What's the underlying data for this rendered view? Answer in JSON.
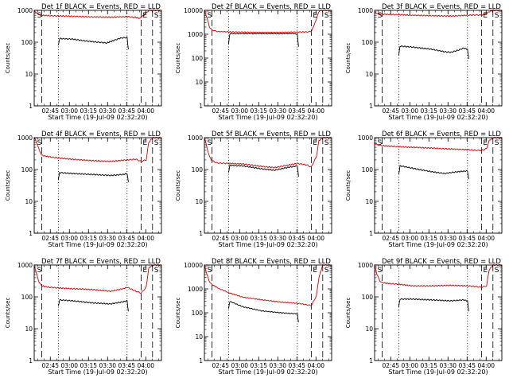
{
  "figure": {
    "series_colors": {
      "events": "#000000",
      "lld": "#e00000"
    }
  },
  "chart_data": [
    {
      "type": "line",
      "title": "Det 1f BLACK = Events, RED = LLD",
      "xlabel": "Start Time (19-Jul-09 02:32:20)",
      "ylabel": "Counts/sec",
      "yscale": "log",
      "ylim": [
        1,
        1000
      ],
      "y_ticks": [
        "1",
        "10",
        "100",
        "1000"
      ],
      "x_ticks": [
        "02:45",
        "03:00",
        "03:15",
        "03:30",
        "03:45",
        "04:00"
      ],
      "x_tick_minutes": [
        12.67,
        27.67,
        42.67,
        57.67,
        72.67,
        87.67
      ],
      "xlim_minutes": [
        0,
        100
      ],
      "markers": [
        {
          "label": "S",
          "minute": 1
        },
        {
          "label": "E",
          "minute": 84
        },
        {
          "label": "S",
          "minute": 93
        }
      ],
      "dashed_lines_minutes": [
        6,
        84,
        93
      ],
      "dotted_lines_minutes": [
        19,
        73
      ],
      "series": [
        {
          "color": "#e00000",
          "x": [
            0,
            2,
            6,
            12,
            19,
            30,
            45,
            60,
            73,
            80,
            83,
            86,
            90,
            92,
            96,
            100
          ],
          "y": [
            1000,
            800,
            700,
            680,
            670,
            650,
            620,
            610,
            630,
            600,
            560,
            700,
            980,
            1000,
            1000,
            1000
          ]
        },
        {
          "color": "#000000",
          "x": [
            19,
            20,
            30,
            40,
            50,
            57,
            63,
            68,
            73,
            74
          ],
          "y": [
            80,
            130,
            125,
            110,
            100,
            95,
            115,
            135,
            140,
            60
          ]
        }
      ]
    },
    {
      "type": "line",
      "title": "Det 2f BLACK = Events, RED = LLD",
      "xlabel": "Start Time (19-Jul-09 02:32:20)",
      "ylabel": "Counts/sec",
      "yscale": "log",
      "ylim": [
        1,
        10000
      ],
      "y_ticks": [
        "1",
        "10",
        "100",
        "1000",
        "10000"
      ],
      "x_ticks": [
        "02:45",
        "03:00",
        "03:15",
        "03:30",
        "03:45",
        "04:00"
      ],
      "x_tick_minutes": [
        12.67,
        27.67,
        42.67,
        57.67,
        72.67,
        87.67
      ],
      "xlim_minutes": [
        0,
        100
      ],
      "markers": [
        {
          "label": "S",
          "minute": 1
        },
        {
          "label": "E",
          "minute": 84
        },
        {
          "label": "S",
          "minute": 93
        }
      ],
      "dashed_lines_minutes": [
        6,
        84,
        93
      ],
      "dotted_lines_minutes": [
        19,
        73
      ],
      "series": [
        {
          "color": "#e00000",
          "x": [
            0,
            2,
            4,
            6,
            10,
            20,
            40,
            60,
            80,
            84,
            87,
            90,
            92,
            96,
            100
          ],
          "y": [
            10000,
            5000,
            2000,
            1500,
            1300,
            1250,
            1200,
            1200,
            1250,
            1300,
            3000,
            9000,
            10000,
            10000,
            10000
          ]
        },
        {
          "color": "#000000",
          "x": [
            19,
            20,
            30,
            40,
            50,
            60,
            70,
            73,
            74
          ],
          "y": [
            400,
            1050,
            1060,
            1060,
            1050,
            1050,
            1060,
            1000,
            300
          ]
        }
      ]
    },
    {
      "type": "line",
      "title": "Det 3f BLACK = Events, RED = LLD",
      "xlabel": "Start Time (19-Jul-09 02:32:20)",
      "ylabel": "Counts/sec",
      "yscale": "log",
      "ylim": [
        1,
        1000
      ],
      "y_ticks": [
        "1",
        "10",
        "100",
        "1000"
      ],
      "x_ticks": [
        "02:45",
        "03:00",
        "03:15",
        "03:30",
        "03:45",
        "04:00"
      ],
      "x_tick_minutes": [
        12.67,
        27.67,
        42.67,
        57.67,
        72.67,
        87.67
      ],
      "xlim_minutes": [
        0,
        100
      ],
      "markers": [
        {
          "label": "S",
          "minute": 1
        },
        {
          "label": "E",
          "minute": 84
        },
        {
          "label": "S",
          "minute": 93
        }
      ],
      "dashed_lines_minutes": [
        6,
        84,
        93
      ],
      "dotted_lines_minutes": [
        19,
        73
      ],
      "series": [
        {
          "color": "#e00000",
          "x": [
            0,
            2,
            6,
            12,
            19,
            30,
            45,
            60,
            73,
            80,
            84,
            87,
            90,
            93,
            100
          ],
          "y": [
            900,
            800,
            760,
            740,
            730,
            700,
            680,
            660,
            700,
            720,
            700,
            760,
            900,
            1000,
            1000
          ]
        },
        {
          "color": "#000000",
          "x": [
            19,
            20,
            30,
            45,
            55,
            60,
            65,
            70,
            73,
            74
          ],
          "y": [
            40,
            75,
            70,
            60,
            50,
            48,
            55,
            65,
            60,
            30
          ]
        }
      ]
    },
    {
      "type": "line",
      "title": "Det 4f BLACK = Events, RED = LLD",
      "xlabel": "Start Time (19-Jul-09 02:32:20)",
      "ylabel": "Counts/sec",
      "yscale": "log",
      "ylim": [
        1,
        1000
      ],
      "y_ticks": [
        "1",
        "10",
        "100",
        "1000"
      ],
      "x_ticks": [
        "02:45",
        "03:00",
        "03:15",
        "03:30",
        "03:45",
        "04:00"
      ],
      "x_tick_minutes": [
        12.67,
        27.67,
        42.67,
        57.67,
        72.67,
        87.67
      ],
      "xlim_minutes": [
        0,
        100
      ],
      "markers": [
        {
          "label": "S",
          "minute": 1
        },
        {
          "label": "E",
          "minute": 84
        },
        {
          "label": "S",
          "minute": 93
        }
      ],
      "dashed_lines_minutes": [
        6,
        84,
        93
      ],
      "dotted_lines_minutes": [
        19,
        73
      ],
      "series": [
        {
          "color": "#e00000",
          "x": [
            0,
            2,
            4,
            6,
            12,
            19,
            30,
            45,
            60,
            73,
            80,
            84,
            88,
            90,
            93,
            100
          ],
          "y": [
            1000,
            700,
            400,
            280,
            250,
            230,
            210,
            190,
            180,
            200,
            210,
            180,
            200,
            700,
            1000,
            1000
          ]
        },
        {
          "color": "#000000",
          "x": [
            19,
            20,
            30,
            45,
            60,
            70,
            73,
            74
          ],
          "y": [
            50,
            80,
            75,
            70,
            65,
            70,
            75,
            40
          ]
        }
      ]
    },
    {
      "type": "line",
      "title": "Det 5f BLACK = Events, RED = LLD",
      "xlabel": "Start Time (19-Jul-09 02:32:20)",
      "ylabel": "Counts/sec",
      "yscale": "log",
      "ylim": [
        1,
        1000
      ],
      "y_ticks": [
        "1",
        "10",
        "100",
        "1000"
      ],
      "x_ticks": [
        "02:45",
        "03:00",
        "03:15",
        "03:30",
        "03:45",
        "04:00"
      ],
      "x_tick_minutes": [
        12.67,
        27.67,
        42.67,
        57.67,
        72.67,
        87.67
      ],
      "xlim_minutes": [
        0,
        100
      ],
      "markers": [
        {
          "label": "S",
          "minute": 1
        },
        {
          "label": "E",
          "minute": 84
        },
        {
          "label": "S",
          "minute": 93
        }
      ],
      "dashed_lines_minutes": [
        6,
        84,
        93
      ],
      "dotted_lines_minutes": [
        19,
        73
      ],
      "series": [
        {
          "color": "#e00000",
          "x": [
            0,
            2,
            4,
            6,
            10,
            19,
            30,
            45,
            55,
            65,
            73,
            80,
            84,
            88,
            90,
            93,
            100
          ],
          "y": [
            1000,
            500,
            250,
            190,
            160,
            155,
            150,
            125,
            115,
            135,
            155,
            140,
            120,
            250,
            800,
            1000,
            1000
          ]
        },
        {
          "color": "#000000",
          "x": [
            19,
            20,
            30,
            45,
            55,
            65,
            73,
            74
          ],
          "y": [
            80,
            135,
            130,
            105,
            95,
            115,
            130,
            60
          ]
        }
      ]
    },
    {
      "type": "line",
      "title": "Det 6f BLACK = Events, RED = LLD",
      "xlabel": "Start Time (19-Jul-09 02:32:20)",
      "ylabel": "Counts/sec",
      "yscale": "log",
      "ylim": [
        1,
        1000
      ],
      "y_ticks": [
        "1",
        "10",
        "100",
        "1000"
      ],
      "x_ticks": [
        "02:45",
        "03:00",
        "03:15",
        "03:30",
        "03:45",
        "04:00"
      ],
      "x_tick_minutes": [
        12.67,
        27.67,
        42.67,
        57.67,
        72.67,
        87.67
      ],
      "xlim_minutes": [
        0,
        100
      ],
      "markers": [
        {
          "label": "S",
          "minute": 1
        },
        {
          "label": "E",
          "minute": 84
        },
        {
          "label": "S",
          "minute": 93
        }
      ],
      "dashed_lines_minutes": [
        6,
        84,
        93
      ],
      "dotted_lines_minutes": [
        19,
        73
      ],
      "series": [
        {
          "color": "#e00000",
          "x": [
            0,
            2,
            6,
            12,
            19,
            30,
            45,
            60,
            73,
            80,
            84,
            88,
            90,
            93,
            100
          ],
          "y": [
            700,
            600,
            560,
            540,
            520,
            500,
            470,
            440,
            420,
            400,
            400,
            450,
            800,
            1000,
            1000
          ]
        },
        {
          "color": "#000000",
          "x": [
            19,
            20,
            25,
            35,
            45,
            55,
            65,
            73,
            74
          ],
          "y": [
            70,
            130,
            120,
            100,
            85,
            75,
            85,
            90,
            50
          ]
        }
      ]
    },
    {
      "type": "line",
      "title": "Det 7f BLACK = Events, RED = LLD",
      "xlabel": "Start Time (19-Jul-09 02:32:20)",
      "ylabel": "Counts/sec",
      "yscale": "log",
      "ylim": [
        1,
        1000
      ],
      "y_ticks": [
        "1",
        "10",
        "100",
        "1000"
      ],
      "x_ticks": [
        "02:45",
        "03:00",
        "03:15",
        "03:30",
        "03:45",
        "04:00"
      ],
      "x_tick_minutes": [
        12.67,
        27.67,
        42.67,
        57.67,
        72.67,
        87.67
      ],
      "xlim_minutes": [
        0,
        100
      ],
      "markers": [
        {
          "label": "S",
          "minute": 1
        },
        {
          "label": "E",
          "minute": 84
        },
        {
          "label": "S",
          "minute": 93
        }
      ],
      "dashed_lines_minutes": [
        6,
        84,
        93
      ],
      "dotted_lines_minutes": [
        19,
        73
      ],
      "series": [
        {
          "color": "#e00000",
          "x": [
            0,
            2,
            4,
            6,
            12,
            19,
            30,
            45,
            60,
            70,
            73,
            80,
            84,
            88,
            90,
            93,
            100
          ],
          "y": [
            1000,
            500,
            280,
            220,
            200,
            190,
            180,
            170,
            150,
            180,
            200,
            150,
            130,
            200,
            800,
            1000,
            1000
          ]
        },
        {
          "color": "#000000",
          "x": [
            19,
            20,
            30,
            45,
            60,
            70,
            73,
            74
          ],
          "y": [
            50,
            80,
            75,
            65,
            60,
            70,
            75,
            35
          ]
        }
      ]
    },
    {
      "type": "line",
      "title": "Det 8f BLACK = Events, RED = LLD",
      "xlabel": "Start Time (19-Jul-09 02:32:20)",
      "ylabel": "Counts/sec",
      "yscale": "log",
      "ylim": [
        1,
        10000
      ],
      "y_ticks": [
        "1",
        "10",
        "100",
        "1000",
        "10000"
      ],
      "x_ticks": [
        "02:45",
        "03:00",
        "03:15",
        "03:30",
        "03:45",
        "04:00"
      ],
      "x_tick_minutes": [
        12.67,
        27.67,
        42.67,
        57.67,
        72.67,
        87.67
      ],
      "xlim_minutes": [
        0,
        100
      ],
      "markers": [
        {
          "label": "S",
          "minute": 1
        },
        {
          "label": "E",
          "minute": 84
        },
        {
          "label": "S",
          "minute": 93
        }
      ],
      "dashed_lines_minutes": [
        6,
        84,
        93
      ],
      "dotted_lines_minutes": [
        19,
        73
      ],
      "series": [
        {
          "color": "#e00000",
          "x": [
            0,
            2,
            4,
            6,
            12,
            19,
            30,
            45,
            60,
            73,
            80,
            84,
            88,
            90,
            93,
            100
          ],
          "y": [
            10000,
            4000,
            2000,
            1500,
            1000,
            700,
            450,
            350,
            280,
            250,
            220,
            200,
            500,
            3000,
            10000,
            10000
          ]
        },
        {
          "color": "#000000",
          "x": [
            19,
            20,
            30,
            45,
            60,
            73,
            74
          ],
          "y": [
            150,
            300,
            180,
            120,
            100,
            90,
            40
          ]
        }
      ]
    },
    {
      "type": "line",
      "title": "Det 9f BLACK = Events, RED = LLD",
      "xlabel": "Start Time (19-Jul-09 02:32:20)",
      "ylabel": "Counts/sec",
      "yscale": "log",
      "ylim": [
        1,
        1000
      ],
      "y_ticks": [
        "1",
        "10",
        "100",
        "1000"
      ],
      "x_ticks": [
        "02:45",
        "03:00",
        "03:15",
        "03:30",
        "03:45",
        "04:00"
      ],
      "x_tick_minutes": [
        12.67,
        27.67,
        42.67,
        57.67,
        72.67,
        87.67
      ],
      "xlim_minutes": [
        0,
        100
      ],
      "markers": [
        {
          "label": "S",
          "minute": 1
        },
        {
          "label": "E",
          "minute": 84
        },
        {
          "label": "S",
          "minute": 93
        }
      ],
      "dashed_lines_minutes": [
        6,
        84,
        93
      ],
      "dotted_lines_minutes": [
        19,
        73
      ],
      "series": [
        {
          "color": "#e00000",
          "x": [
            0,
            2,
            4,
            6,
            12,
            19,
            30,
            45,
            60,
            73,
            80,
            84,
            88,
            90,
            93,
            100
          ],
          "y": [
            1000,
            500,
            320,
            280,
            260,
            250,
            220,
            220,
            230,
            220,
            210,
            200,
            220,
            700,
            1000,
            1000
          ]
        },
        {
          "color": "#000000",
          "x": [
            19,
            20,
            30,
            45,
            60,
            70,
            73,
            74
          ],
          "y": [
            50,
            85,
            85,
            80,
            75,
            80,
            75,
            35
          ]
        }
      ]
    }
  ]
}
